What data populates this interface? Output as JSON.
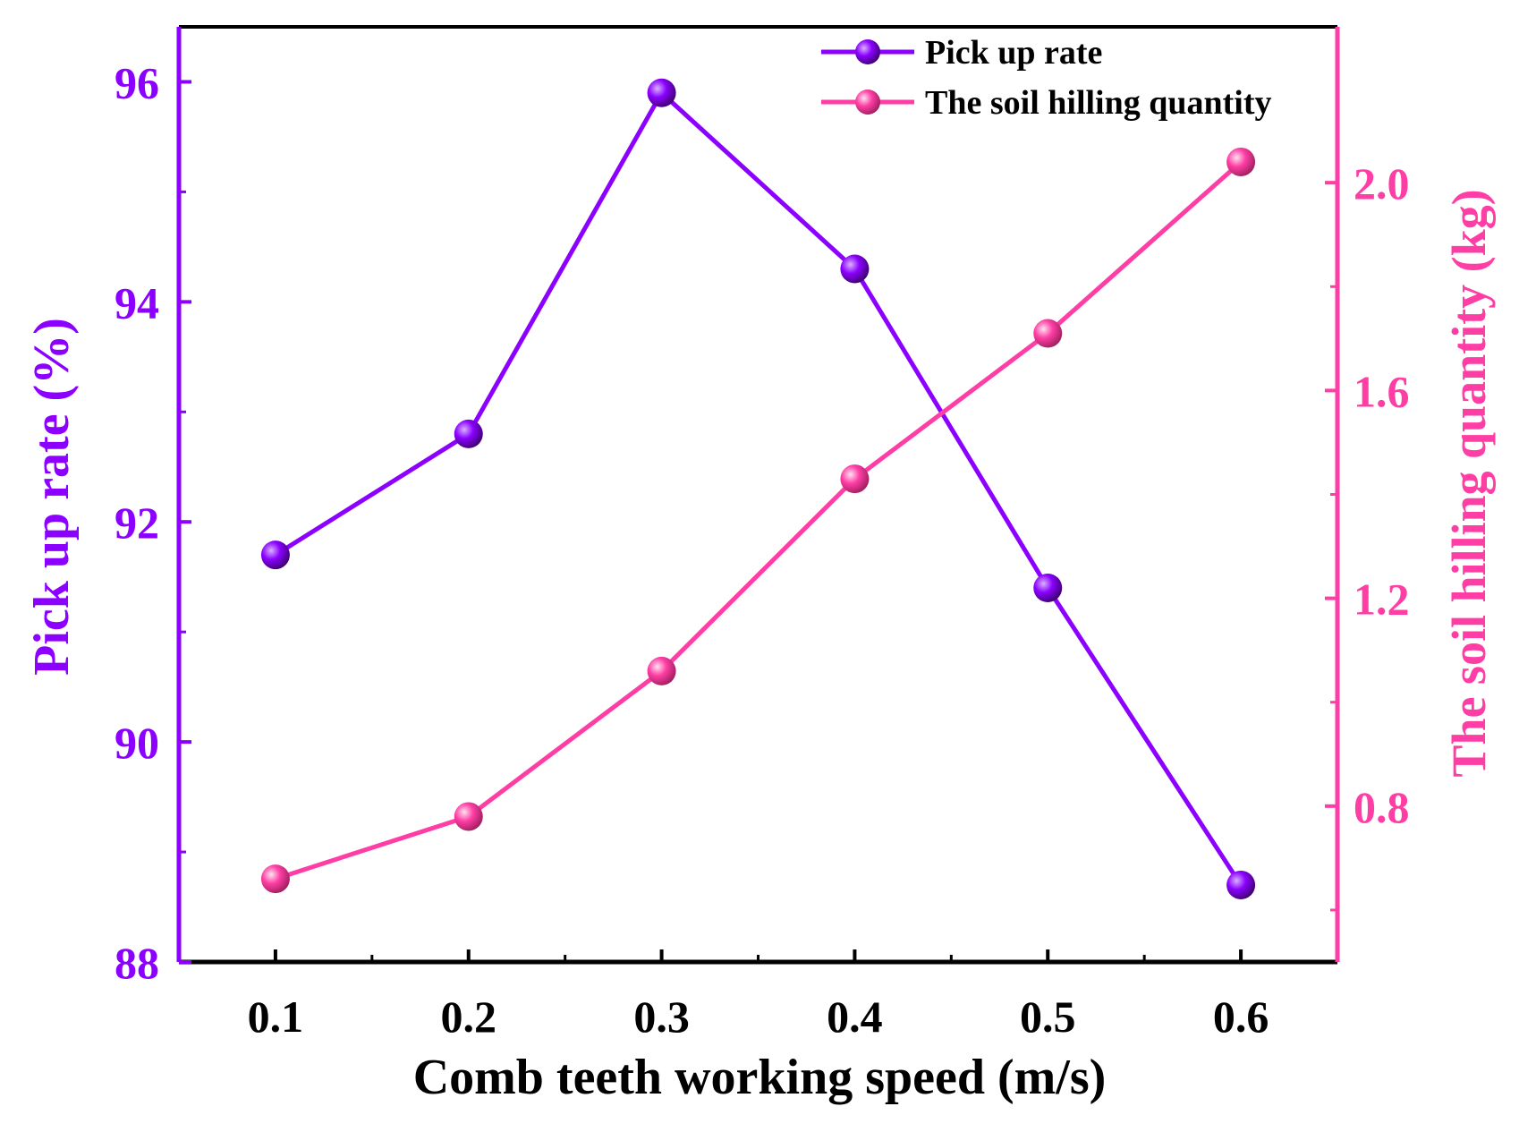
{
  "chart_data": {
    "type": "line",
    "xlabel": "Comb teeth working speed (m/s)",
    "x": [
      0.1,
      0.2,
      0.3,
      0.4,
      0.5,
      0.6
    ],
    "x_tick_labels": [
      "0.1",
      "0.2",
      "0.3",
      "0.4",
      "0.5",
      "0.6"
    ],
    "xlim": [
      0.05,
      0.65
    ],
    "y_left": {
      "label": "Pick up rate (%)",
      "lim": [
        88,
        96.5
      ],
      "ticks": [
        88,
        90,
        92,
        94,
        96
      ],
      "tick_labels": [
        "88",
        "90",
        "92",
        "94",
        "96"
      ],
      "color": "#8B00FF"
    },
    "y_right": {
      "label": "The soil hilling quantity (kg)",
      "lim": [
        0.5,
        2.3
      ],
      "ticks": [
        0.8,
        1.2,
        1.6,
        2.0
      ],
      "tick_labels": [
        "0.8",
        "1.2",
        "1.6",
        "2.0"
      ],
      "color": "#FF3EA5"
    },
    "series": [
      {
        "name": "Pick up rate",
        "axis": "left",
        "color": "#8B00FF",
        "values": [
          91.7,
          92.8,
          95.9,
          94.3,
          91.4,
          88.7
        ]
      },
      {
        "name": "The soil hilling quantity",
        "axis": "right",
        "color": "#FF3EA5",
        "values": [
          0.66,
          0.78,
          1.06,
          1.43,
          1.71,
          2.04
        ]
      }
    ],
    "legend_position": "top-right",
    "grid": false
  }
}
